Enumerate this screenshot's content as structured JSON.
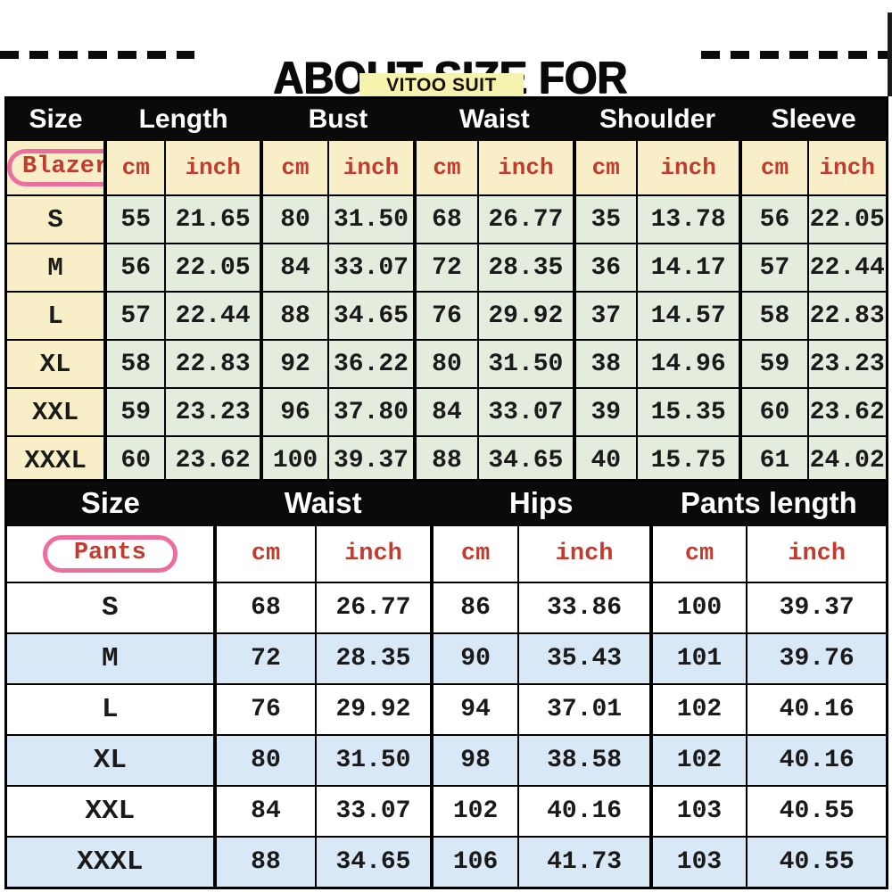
{
  "header": {
    "title": "ABOUT SIZE FOR WOMEN",
    "store_name": "VITOO SUIT STORE"
  },
  "colors": {
    "store_highlight": "#f6f3ae",
    "blazer_cream": "#f8efc9",
    "blazer_green": "#e4ecdd",
    "pants_blue": "#d8e8f6",
    "unit_red": "#c23b2e",
    "circle_pink": "#ec6e9f",
    "header_black": "#0a0a0a"
  },
  "blazer_table": {
    "corner_label": "Blazer",
    "group_headers": [
      {
        "label": "Size",
        "span": 1
      },
      {
        "label": "Length",
        "span": 2
      },
      {
        "label": "Bust",
        "span": 2
      },
      {
        "label": "Waist",
        "span": 2
      },
      {
        "label": "Shoulder",
        "span": 2
      },
      {
        "label": "Sleeve",
        "span": 2
      }
    ],
    "unit_headers": [
      "cm",
      "inch",
      "cm",
      "inch",
      "cm",
      "inch",
      "cm",
      "inch",
      "cm",
      "inch"
    ],
    "rows": [
      {
        "size": "S",
        "values": [
          "55",
          "21.65",
          "80",
          "31.50",
          "68",
          "26.77",
          "35",
          "13.78",
          "56",
          "22.05"
        ]
      },
      {
        "size": "M",
        "values": [
          "56",
          "22.05",
          "84",
          "33.07",
          "72",
          "28.35",
          "36",
          "14.17",
          "57",
          "22.44"
        ]
      },
      {
        "size": "L",
        "values": [
          "57",
          "22.44",
          "88",
          "34.65",
          "76",
          "29.92",
          "37",
          "14.57",
          "58",
          "22.83"
        ]
      },
      {
        "size": "XL",
        "values": [
          "58",
          "22.83",
          "92",
          "36.22",
          "80",
          "31.50",
          "38",
          "14.96",
          "59",
          "23.23"
        ]
      },
      {
        "size": "XXL",
        "values": [
          "59",
          "23.23",
          "96",
          "37.80",
          "84",
          "33.07",
          "39",
          "15.35",
          "60",
          "23.62"
        ]
      },
      {
        "size": "XXXL",
        "values": [
          "60",
          "23.62",
          "100",
          "39.37",
          "88",
          "34.65",
          "40",
          "15.75",
          "61",
          "24.02"
        ]
      }
    ]
  },
  "pants_table": {
    "corner_label": "Pants",
    "group_headers": [
      {
        "label": "Size",
        "span": 1
      },
      {
        "label": "Waist",
        "span": 2
      },
      {
        "label": "Hips",
        "span": 2
      },
      {
        "label": "Pants length",
        "span": 2
      }
    ],
    "unit_headers": [
      "cm",
      "inch",
      "cm",
      "inch",
      "cm",
      "inch"
    ],
    "rows": [
      {
        "size": "S",
        "values": [
          "68",
          "26.77",
          "86",
          "33.86",
          "100",
          "39.37"
        ]
      },
      {
        "size": "M",
        "values": [
          "72",
          "28.35",
          "90",
          "35.43",
          "101",
          "39.76"
        ]
      },
      {
        "size": "L",
        "values": [
          "76",
          "29.92",
          "94",
          "37.01",
          "102",
          "40.16"
        ]
      },
      {
        "size": "XL",
        "values": [
          "80",
          "31.50",
          "98",
          "38.58",
          "102",
          "40.16"
        ]
      },
      {
        "size": "XXL",
        "values": [
          "84",
          "33.07",
          "102",
          "40.16",
          "103",
          "40.55"
        ]
      },
      {
        "size": "XXXL",
        "values": [
          "88",
          "34.65",
          "106",
          "41.73",
          "103",
          "40.55"
        ]
      }
    ]
  }
}
